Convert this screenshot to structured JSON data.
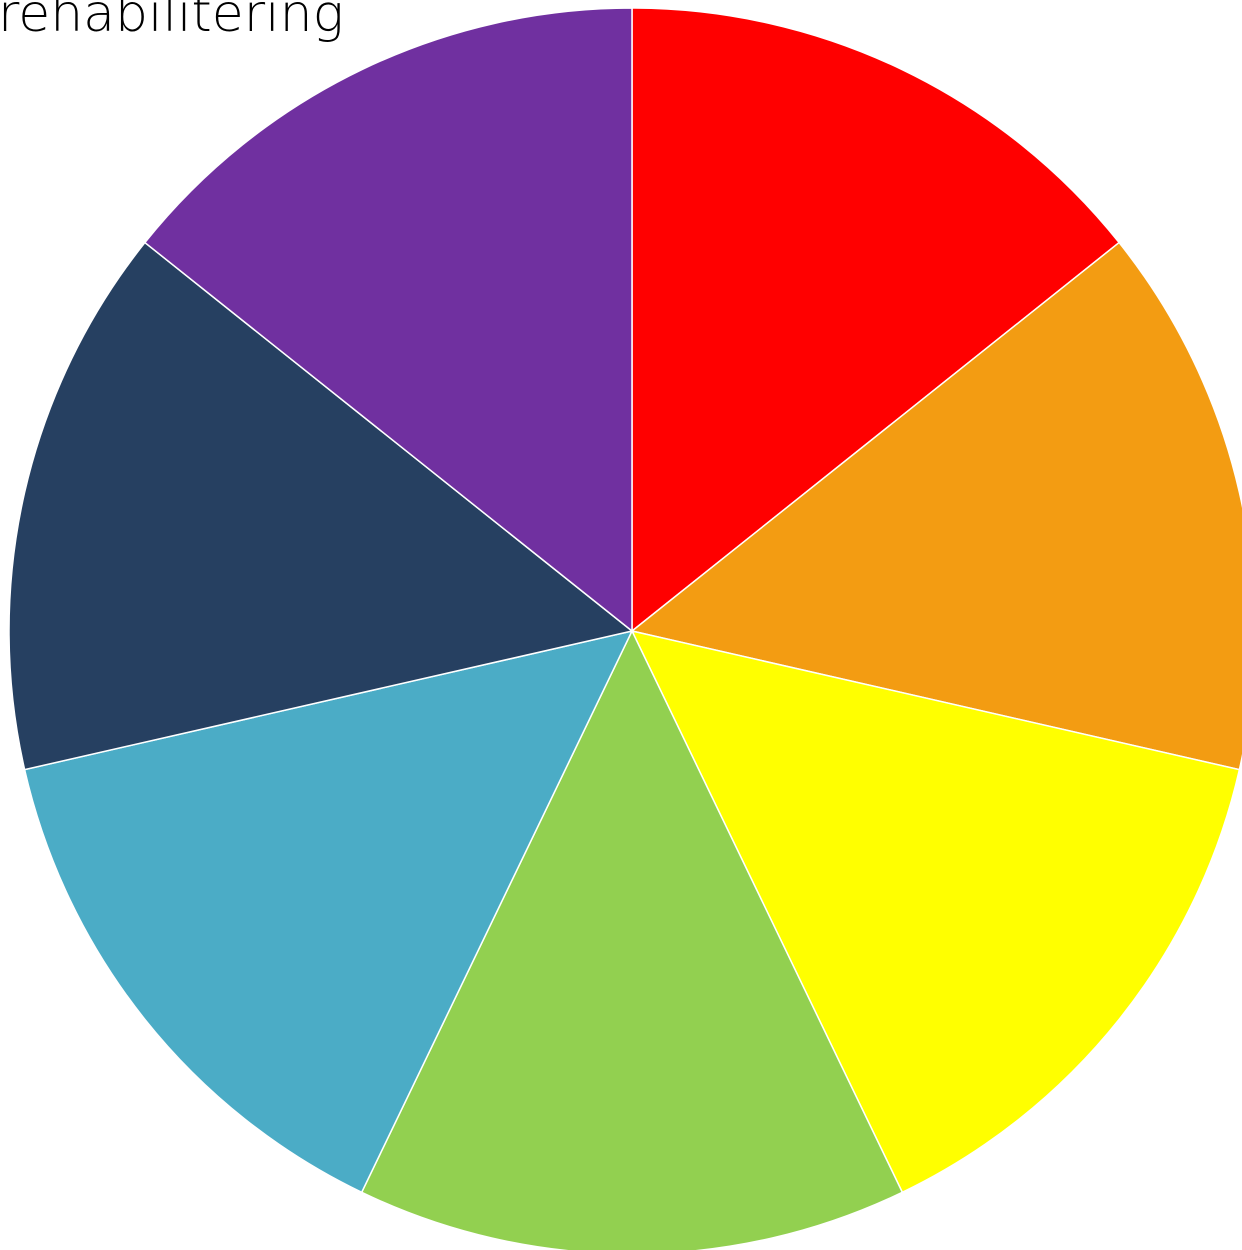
{
  "chart_data": {
    "type": "pie",
    "title": "",
    "labels": [
      "rehabilitering"
    ],
    "slices": [
      {
        "value": 1,
        "color": "#FF0000"
      },
      {
        "value": 1,
        "color": "#F39C12"
      },
      {
        "value": 1,
        "color": "#FFFF00"
      },
      {
        "value": 1,
        "color": "#92D050"
      },
      {
        "value": 1,
        "color": "#4BACC6"
      },
      {
        "value": 1,
        "color": "#264061"
      },
      {
        "value": 1,
        "color": "#7030A0"
      }
    ],
    "start_angle_deg": 0,
    "direction": "clockwise",
    "legend": "none"
  }
}
